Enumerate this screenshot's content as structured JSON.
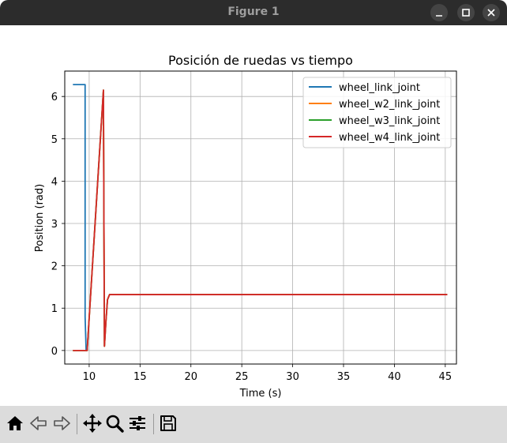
{
  "window": {
    "title": "Figure 1"
  },
  "toolbar": {
    "tools": [
      {
        "name": "home-icon",
        "label": "Home"
      },
      {
        "name": "back-icon",
        "label": "Back"
      },
      {
        "name": "forward-icon",
        "label": "Forward"
      },
      {
        "name": "pan-icon",
        "label": "Pan"
      },
      {
        "name": "zoom-icon",
        "label": "Zoom"
      },
      {
        "name": "configure-subplots-icon",
        "label": "Subplots"
      },
      {
        "name": "save-icon",
        "label": "Save"
      }
    ]
  },
  "chart_data": {
    "type": "line",
    "title": "Posición de ruedas vs tiempo",
    "xlabel": "Time (s)",
    "ylabel": "Position (rad)",
    "xlim": [
      7.6,
      46.1
    ],
    "ylim": [
      -0.32,
      6.6
    ],
    "xticks": [
      10,
      15,
      20,
      25,
      30,
      35,
      40,
      45
    ],
    "yticks": [
      0,
      1,
      2,
      3,
      4,
      5,
      6
    ],
    "grid": true,
    "legend_position": "top-right",
    "series": [
      {
        "name": "wheel_link_joint",
        "color": "#1f77b4",
        "x": [
          8.4,
          9.6,
          9.6,
          9.7,
          9.8
        ],
        "y": [
          6.28,
          6.28,
          0.8,
          0.0,
          0.0
        ]
      },
      {
        "name": "wheel_w2_link_joint",
        "color": "#ff7f0e",
        "x": [
          8.4,
          9.7,
          9.8,
          11.4,
          11.45,
          11.5,
          11.65,
          11.8,
          12.0,
          45.2
        ],
        "y": [
          0.0,
          0.0,
          0.0,
          6.15,
          3.0,
          0.1,
          0.7,
          1.2,
          1.32,
          1.32
        ]
      },
      {
        "name": "wheel_w3_link_joint",
        "color": "#2ca02c",
        "x": [
          8.4,
          9.7,
          9.8,
          11.4,
          11.45,
          11.5,
          11.65,
          11.8,
          12.0,
          45.2
        ],
        "y": [
          0.0,
          0.0,
          0.0,
          6.15,
          3.0,
          0.1,
          0.7,
          1.2,
          1.32,
          1.32
        ]
      },
      {
        "name": "wheel_w4_link_joint",
        "color": "#d62728",
        "x": [
          8.4,
          9.7,
          9.8,
          11.4,
          11.45,
          11.5,
          11.65,
          11.8,
          12.0,
          45.2
        ],
        "y": [
          0.0,
          0.0,
          0.0,
          6.15,
          3.0,
          0.1,
          0.7,
          1.2,
          1.32,
          1.32
        ]
      }
    ]
  }
}
